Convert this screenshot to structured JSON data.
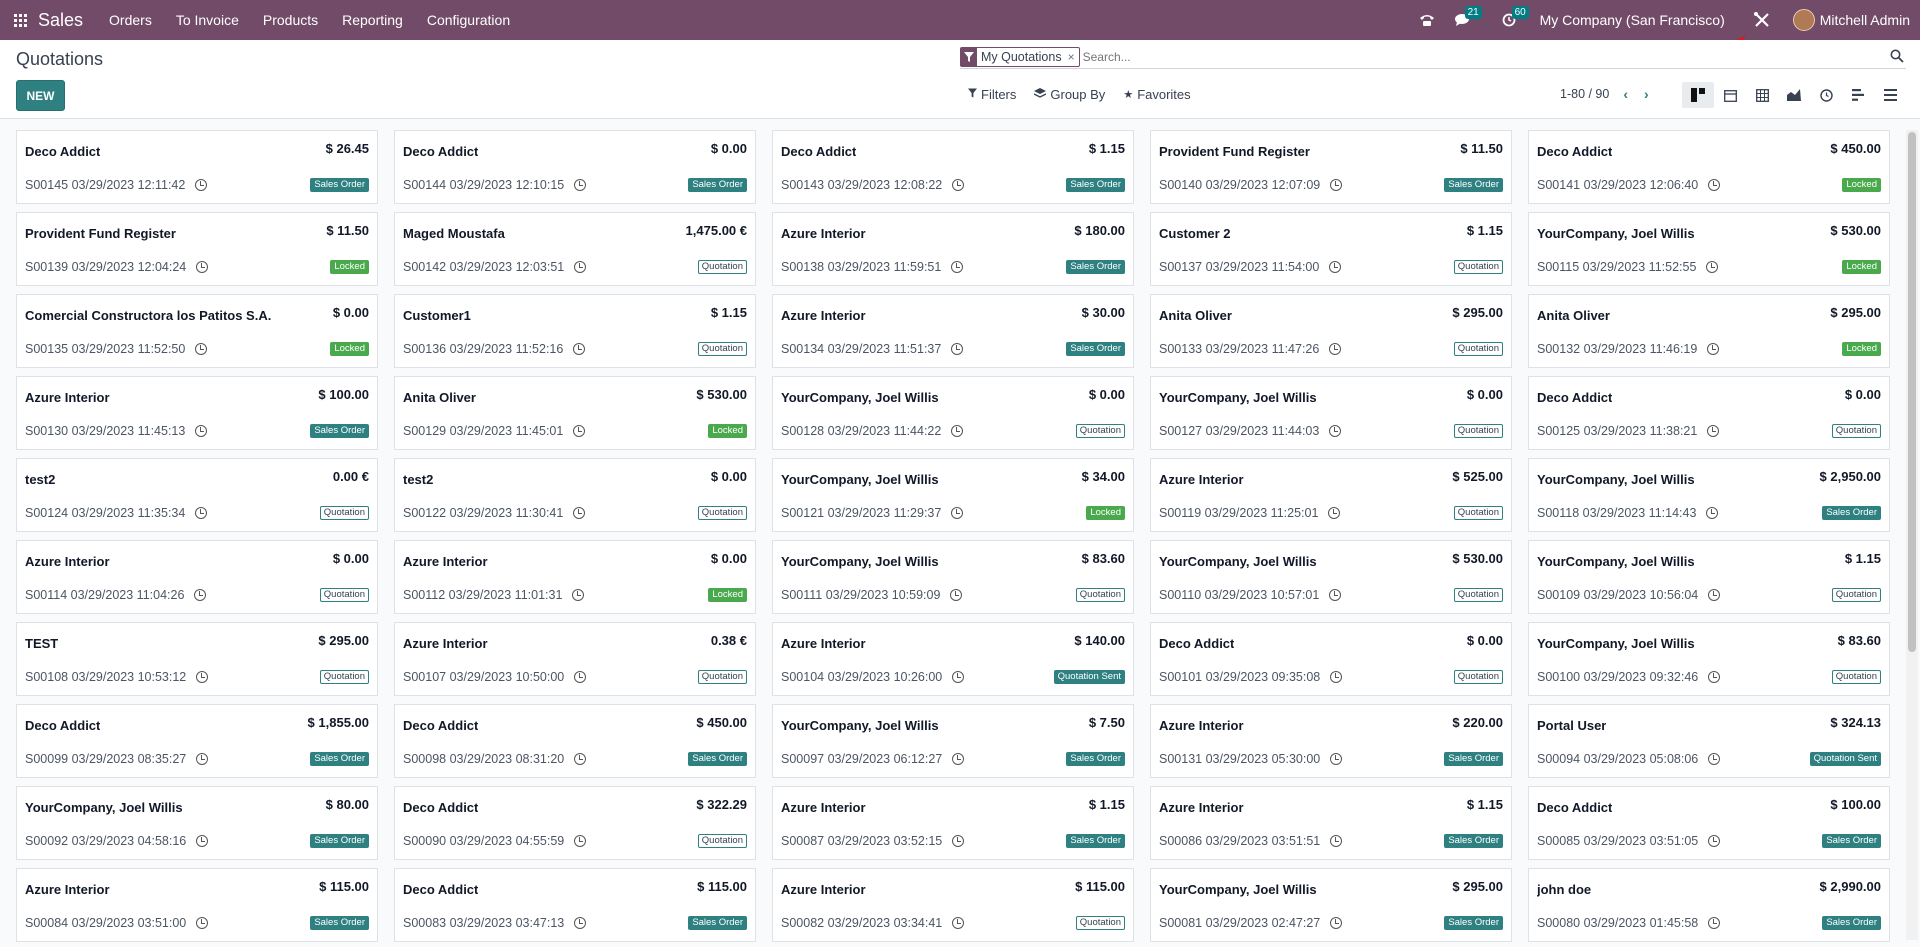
{
  "nav": {
    "brand": "Sales",
    "menu": [
      "Orders",
      "To Invoice",
      "Products",
      "Reporting",
      "Configuration"
    ],
    "messages_count": "21",
    "activities_count": "60",
    "company": "My Company (San Francisco)",
    "user": "Mitchell Admin"
  },
  "control": {
    "title": "Quotations",
    "new_label": "NEW",
    "facet": "My Quotations",
    "search_placeholder": "Search...",
    "filters": "Filters",
    "group_by": "Group By",
    "favorites": "Favorites",
    "pager": "1-80 / 90"
  },
  "tag_colors": {
    "Sales Order": "#2f8181",
    "Locked": "#4aa84d",
    "Quotation": "#ffffff",
    "Quotation Sent": "#2f8181"
  },
  "cards": [
    {
      "name": "Deco Addict",
      "amount": "$ 26.45",
      "ref": "S00145 03/29/2023 12:11:42",
      "status": "Sales Order"
    },
    {
      "name": "Deco Addict",
      "amount": "$ 0.00",
      "ref": "S00144 03/29/2023 12:10:15",
      "status": "Sales Order"
    },
    {
      "name": "Deco Addict",
      "amount": "$ 1.15",
      "ref": "S00143 03/29/2023 12:08:22",
      "status": "Sales Order"
    },
    {
      "name": "Provident Fund Register",
      "amount": "$ 11.50",
      "ref": "S00140 03/29/2023 12:07:09",
      "status": "Sales Order"
    },
    {
      "name": "Deco Addict",
      "amount": "$ 450.00",
      "ref": "S00141 03/29/2023 12:06:40",
      "status": "Locked"
    },
    {
      "name": "Provident Fund Register",
      "amount": "$ 11.50",
      "ref": "S00139 03/29/2023 12:04:24",
      "status": "Locked"
    },
    {
      "name": "Maged Moustafa",
      "amount": "1,475.00 €",
      "ref": "S00142 03/29/2023 12:03:51",
      "status": "Quotation"
    },
    {
      "name": "Azure Interior",
      "amount": "$ 180.00",
      "ref": "S00138 03/29/2023 11:59:51",
      "status": "Sales Order"
    },
    {
      "name": "Customer 2",
      "amount": "$ 1.15",
      "ref": "S00137 03/29/2023 11:54:00",
      "status": "Quotation"
    },
    {
      "name": "YourCompany, Joel Willis",
      "amount": "$ 530.00",
      "ref": "S00115 03/29/2023 11:52:55",
      "status": "Locked"
    },
    {
      "name": "Comercial Constructora los Patitos S.A.",
      "amount": "$ 0.00",
      "ref": "S00135 03/29/2023 11:52:50",
      "status": "Locked"
    },
    {
      "name": "Customer1",
      "amount": "$ 1.15",
      "ref": "S00136 03/29/2023 11:52:16",
      "status": "Quotation"
    },
    {
      "name": "Azure Interior",
      "amount": "$ 30.00",
      "ref": "S00134 03/29/2023 11:51:37",
      "status": "Sales Order"
    },
    {
      "name": "Anita Oliver",
      "amount": "$ 295.00",
      "ref": "S00133 03/29/2023 11:47:26",
      "status": "Quotation"
    },
    {
      "name": "Anita Oliver",
      "amount": "$ 295.00",
      "ref": "S00132 03/29/2023 11:46:19",
      "status": "Locked"
    },
    {
      "name": "Azure Interior",
      "amount": "$ 100.00",
      "ref": "S00130 03/29/2023 11:45:13",
      "status": "Sales Order"
    },
    {
      "name": "Anita Oliver",
      "amount": "$ 530.00",
      "ref": "S00129 03/29/2023 11:45:01",
      "status": "Locked"
    },
    {
      "name": "YourCompany, Joel Willis",
      "amount": "$ 0.00",
      "ref": "S00128 03/29/2023 11:44:22",
      "status": "Quotation"
    },
    {
      "name": "YourCompany, Joel Willis",
      "amount": "$ 0.00",
      "ref": "S00127 03/29/2023 11:44:03",
      "status": "Quotation"
    },
    {
      "name": "Deco Addict",
      "amount": "$ 0.00",
      "ref": "S00125 03/29/2023 11:38:21",
      "status": "Quotation"
    },
    {
      "name": "test2",
      "amount": "0.00 €",
      "ref": "S00124 03/29/2023 11:35:34",
      "status": "Quotation"
    },
    {
      "name": "test2",
      "amount": "$ 0.00",
      "ref": "S00122 03/29/2023 11:30:41",
      "status": "Quotation"
    },
    {
      "name": "YourCompany, Joel Willis",
      "amount": "$ 34.00",
      "ref": "S00121 03/29/2023 11:29:37",
      "status": "Locked"
    },
    {
      "name": "Azure Interior",
      "amount": "$ 525.00",
      "ref": "S00119 03/29/2023 11:25:01",
      "status": "Quotation"
    },
    {
      "name": "YourCompany, Joel Willis",
      "amount": "$ 2,950.00",
      "ref": "S00118 03/29/2023 11:14:43",
      "status": "Sales Order"
    },
    {
      "name": "Azure Interior",
      "amount": "$ 0.00",
      "ref": "S00114 03/29/2023 11:04:26",
      "status": "Quotation"
    },
    {
      "name": "Azure Interior",
      "amount": "$ 0.00",
      "ref": "S00112 03/29/2023 11:01:31",
      "status": "Locked"
    },
    {
      "name": "YourCompany, Joel Willis",
      "amount": "$ 83.60",
      "ref": "S00111 03/29/2023 10:59:09",
      "status": "Quotation"
    },
    {
      "name": "YourCompany, Joel Willis",
      "amount": "$ 530.00",
      "ref": "S00110 03/29/2023 10:57:01",
      "status": "Quotation"
    },
    {
      "name": "YourCompany, Joel Willis",
      "amount": "$ 1.15",
      "ref": "S00109 03/29/2023 10:56:04",
      "status": "Quotation"
    },
    {
      "name": "TEST",
      "amount": "$ 295.00",
      "ref": "S00108 03/29/2023 10:53:12",
      "status": "Quotation"
    },
    {
      "name": "Azure Interior",
      "amount": "0.38 €",
      "ref": "S00107 03/29/2023 10:50:00",
      "status": "Quotation"
    },
    {
      "name": "Azure Interior",
      "amount": "$ 140.00",
      "ref": "S00104 03/29/2023 10:26:00",
      "status": "Quotation Sent"
    },
    {
      "name": "Deco Addict",
      "amount": "$ 0.00",
      "ref": "S00101 03/29/2023 09:35:08",
      "status": "Quotation"
    },
    {
      "name": "YourCompany, Joel Willis",
      "amount": "$ 83.60",
      "ref": "S00100 03/29/2023 09:32:46",
      "status": "Quotation"
    },
    {
      "name": "Deco Addict",
      "amount": "$ 1,855.00",
      "ref": "S00099 03/29/2023 08:35:27",
      "status": "Sales Order"
    },
    {
      "name": "Deco Addict",
      "amount": "$ 450.00",
      "ref": "S00098 03/29/2023 08:31:20",
      "status": "Sales Order"
    },
    {
      "name": "YourCompany, Joel Willis",
      "amount": "$ 7.50",
      "ref": "S00097 03/29/2023 06:12:27",
      "status": "Sales Order"
    },
    {
      "name": "Azure Interior",
      "amount": "$ 220.00",
      "ref": "S00131 03/29/2023 05:30:00",
      "status": "Sales Order"
    },
    {
      "name": "Portal User",
      "amount": "$ 324.13",
      "ref": "S00094 03/29/2023 05:08:06",
      "status": "Quotation Sent"
    },
    {
      "name": "YourCompany, Joel Willis",
      "amount": "$ 80.00",
      "ref": "S00092 03/29/2023 04:58:16",
      "status": "Sales Order"
    },
    {
      "name": "Deco Addict",
      "amount": "$ 322.29",
      "ref": "S00090 03/29/2023 04:55:59",
      "status": "Quotation"
    },
    {
      "name": "Azure Interior",
      "amount": "$ 1.15",
      "ref": "S00087 03/29/2023 03:52:15",
      "status": "Sales Order"
    },
    {
      "name": "Azure Interior",
      "amount": "$ 1.15",
      "ref": "S00086 03/29/2023 03:51:51",
      "status": "Sales Order"
    },
    {
      "name": "Deco Addict",
      "amount": "$ 100.00",
      "ref": "S00085 03/29/2023 03:51:05",
      "status": "Sales Order"
    },
    {
      "name": "Azure Interior",
      "amount": "$ 115.00",
      "ref": "S00084 03/29/2023 03:51:00",
      "status": "Sales Order"
    },
    {
      "name": "Deco Addict",
      "amount": "$ 115.00",
      "ref": "S00083 03/29/2023 03:47:13",
      "status": "Sales Order"
    },
    {
      "name": "Azure Interior",
      "amount": "$ 115.00",
      "ref": "S00082 03/29/2023 03:34:41",
      "status": "Quotation"
    },
    {
      "name": "YourCompany, Joel Willis",
      "amount": "$ 295.00",
      "ref": "S00081 03/29/2023 02:47:27",
      "status": "Sales Order"
    },
    {
      "name": "john doe",
      "amount": "$ 2,990.00",
      "ref": "S00080 03/29/2023 01:45:58",
      "status": "Sales Order"
    }
  ]
}
